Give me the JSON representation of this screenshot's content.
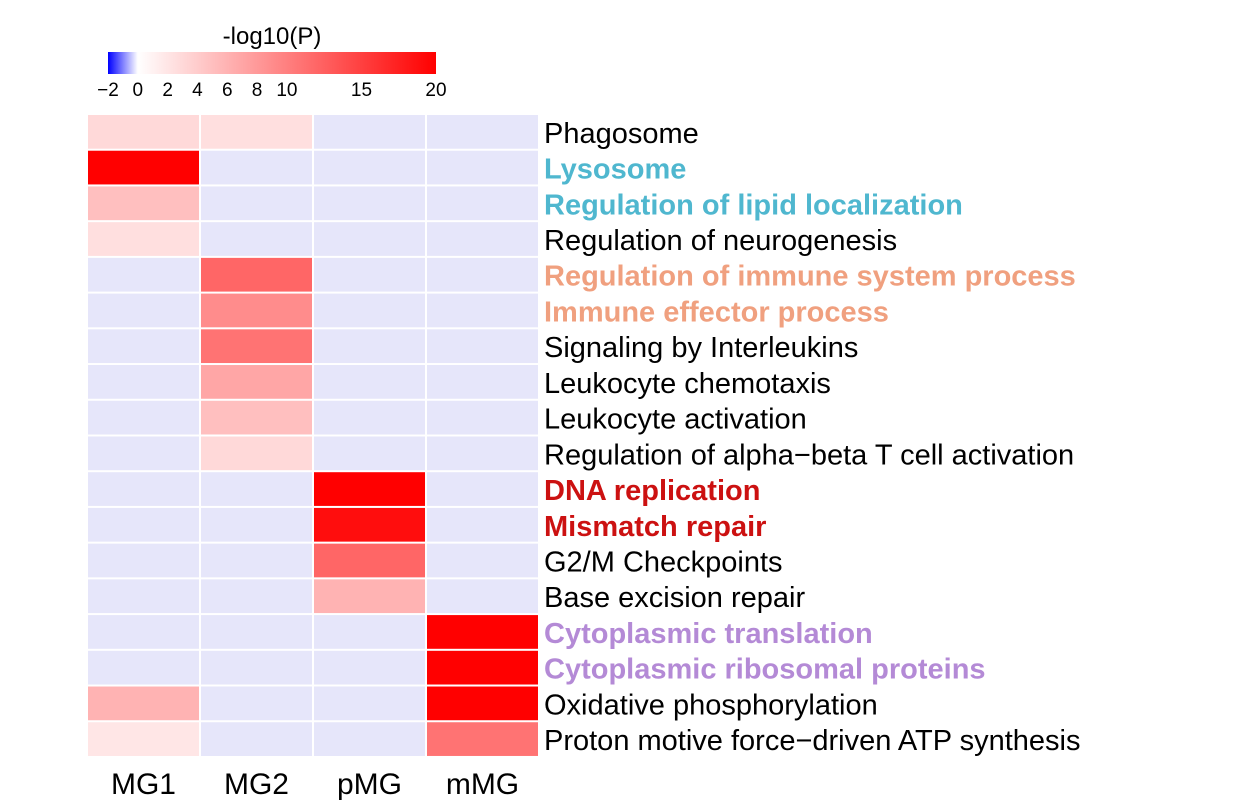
{
  "chart_data": {
    "type": "heatmap",
    "colorbar": {
      "title": "-log10(P)",
      "ticks": [
        "−2",
        "0",
        "2",
        "4",
        "6",
        "8",
        "10",
        "15",
        "20"
      ],
      "tick_values": [
        -2,
        0,
        2,
        4,
        6,
        8,
        10,
        15,
        20
      ],
      "range": [
        -2,
        20
      ],
      "colors": {
        "low": "#0000ff",
        "mid": "#ffffff",
        "high": "#ff0000",
        "background": "#e6e6fa"
      }
    },
    "columns": [
      "MG1",
      "MG2",
      "pMG",
      "mMG"
    ],
    "rows": [
      {
        "label": "Phagosome",
        "color": "#000000",
        "bold": false,
        "values": [
          3,
          2.5,
          -2,
          -2
        ]
      },
      {
        "label": "Lysosome",
        "color": "#4fb7cf",
        "bold": true,
        "values": [
          20,
          -2,
          -2,
          -2
        ]
      },
      {
        "label": "Regulation of lipid localization",
        "color": "#4fb7cf",
        "bold": true,
        "values": [
          5,
          -2,
          -2,
          -2
        ]
      },
      {
        "label": "Regulation of neurogenesis",
        "color": "#000000",
        "bold": false,
        "values": [
          2.5,
          -2,
          -2,
          -2
        ]
      },
      {
        "label": "Regulation of immune system process",
        "color": "#f0a07f",
        "bold": true,
        "values": [
          -2,
          12,
          -2,
          -2
        ]
      },
      {
        "label": "Immune effector process",
        "color": "#f0a07f",
        "bold": true,
        "values": [
          -2,
          9,
          -2,
          -2
        ]
      },
      {
        "label": "Signaling by Interleukins",
        "color": "#000000",
        "bold": false,
        "values": [
          -2,
          11,
          -2,
          -2
        ]
      },
      {
        "label": "Leukocyte chemotaxis",
        "color": "#000000",
        "bold": false,
        "values": [
          -2,
          7,
          -2,
          -2
        ]
      },
      {
        "label": "Leukocyte activation",
        "color": "#000000",
        "bold": false,
        "values": [
          -2,
          5,
          -2,
          -2
        ]
      },
      {
        "label": "Regulation of alpha−beta T cell activation",
        "color": "#000000",
        "bold": false,
        "values": [
          -2,
          3,
          -2,
          -2
        ]
      },
      {
        "label": "DNA replication",
        "color": "#cc1111",
        "bold": true,
        "values": [
          -2,
          -2,
          20,
          -2
        ]
      },
      {
        "label": "Mismatch repair",
        "color": "#cc1111",
        "bold": true,
        "values": [
          -2,
          -2,
          19,
          -2
        ]
      },
      {
        "label": "G2/M Checkpoints",
        "color": "#000000",
        "bold": false,
        "values": [
          -2,
          -2,
          12,
          -2
        ]
      },
      {
        "label": "Base excision repair",
        "color": "#000000",
        "bold": false,
        "values": [
          -2,
          -2,
          6,
          -2
        ]
      },
      {
        "label": "Cytoplasmic translation",
        "color": "#b48ad6",
        "bold": true,
        "values": [
          -2,
          -2,
          -2,
          20
        ]
      },
      {
        "label": "Cytoplasmic ribosomal proteins",
        "color": "#b48ad6",
        "bold": true,
        "values": [
          -2,
          -2,
          -2,
          20
        ]
      },
      {
        "label": "Oxidative phosphorylation",
        "color": "#000000",
        "bold": false,
        "values": [
          6,
          -2,
          -2,
          20
        ]
      },
      {
        "label": "Proton motive force−driven ATP synthesis",
        "color": "#000000",
        "bold": false,
        "values": [
          2,
          -2,
          -2,
          11
        ]
      }
    ]
  }
}
